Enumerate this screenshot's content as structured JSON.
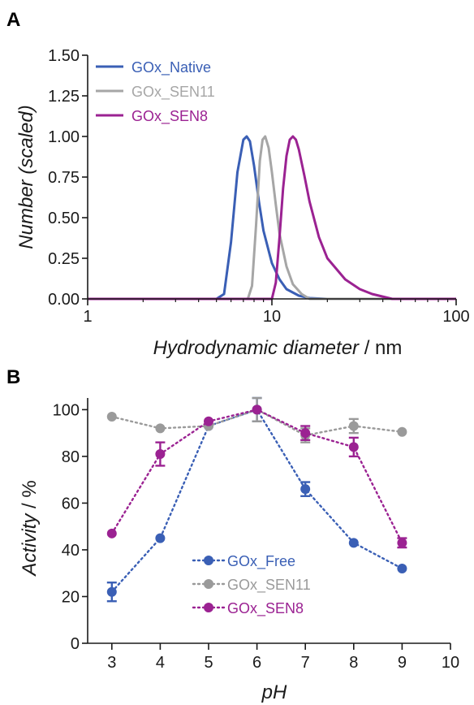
{
  "colors": {
    "native": "#3a5fb5",
    "sen11": "#a6a6a6",
    "sen8": "#9b2292",
    "axis": "#1a1a1a"
  },
  "chart_data": [
    {
      "panel": "A",
      "type": "line",
      "xscale": "log",
      "xlim": [
        1,
        100
      ],
      "ylim": [
        0,
        1.5
      ],
      "xticks": [
        1,
        10,
        100
      ],
      "xtick_labels": [
        "1",
        "10",
        "100"
      ],
      "yticks": [
        0,
        0.25,
        0.5,
        0.75,
        1.0,
        1.25,
        1.5
      ],
      "ytick_labels": [
        "0.00",
        "0.25",
        "0.50",
        "0.75",
        "1.00",
        "1.25",
        "1.50"
      ],
      "ylabel": "Number  (scaled)",
      "xlabel_italic": "Hydrodynamic diameter",
      "xlabel_unit": " / nm",
      "legend": "top-left",
      "series": [
        {
          "name": "GOx_Native",
          "color": "#3a5fb5",
          "x": [
            1,
            5.0,
            5.5,
            6.0,
            6.5,
            7.0,
            7.3,
            7.6,
            8.0,
            8.5,
            9.0,
            10.0,
            11.0,
            12.0,
            14.0,
            16.0,
            20.0,
            100
          ],
          "y": [
            0,
            0,
            0.03,
            0.35,
            0.78,
            0.98,
            1.0,
            0.97,
            0.82,
            0.6,
            0.42,
            0.22,
            0.12,
            0.06,
            0.02,
            0.005,
            0,
            0
          ]
        },
        {
          "name": "GOx_SEN11",
          "color": "#a6a6a6",
          "x": [
            1,
            7.4,
            7.8,
            8.2,
            8.6,
            8.9,
            9.2,
            9.6,
            10.0,
            10.5,
            11.0,
            12.0,
            13.0,
            14.5,
            16.0,
            100
          ],
          "y": [
            0,
            0,
            0.08,
            0.45,
            0.85,
            0.98,
            1.0,
            0.93,
            0.78,
            0.58,
            0.4,
            0.2,
            0.09,
            0.03,
            0,
            0
          ]
        },
        {
          "name": "GOx_SEN8",
          "color": "#9b2292",
          "x": [
            1,
            10.0,
            10.5,
            11.0,
            11.5,
            12.0,
            12.5,
            13.0,
            13.5,
            14.0,
            15.0,
            16.0,
            18.0,
            20.0,
            25.0,
            30.0,
            35.0,
            45.0,
            100
          ],
          "y": [
            0,
            0,
            0.1,
            0.38,
            0.68,
            0.88,
            0.98,
            1.0,
            0.98,
            0.92,
            0.76,
            0.6,
            0.38,
            0.25,
            0.12,
            0.06,
            0.03,
            0,
            0
          ]
        }
      ]
    },
    {
      "panel": "B",
      "type": "scatter",
      "xlim": [
        2.5,
        10
      ],
      "ylim": [
        0,
        105
      ],
      "xticks": [
        3,
        4,
        5,
        6,
        7,
        8,
        9,
        10
      ],
      "xtick_labels": [
        "3",
        "4",
        "5",
        "6",
        "7",
        "8",
        "9",
        "10"
      ],
      "yticks": [
        0,
        20,
        40,
        60,
        80,
        100
      ],
      "ytick_labels": [
        "0",
        "20",
        "40",
        "60",
        "80",
        "100"
      ],
      "xlabel": "pH",
      "ylabel_italic": "Activity",
      "ylabel_unit": " / %",
      "legend": "bottom-center",
      "series": [
        {
          "name": "GOx_Free",
          "color": "#3a5fb5",
          "x": [
            3,
            4,
            5,
            6,
            7,
            8,
            9
          ],
          "y": [
            22,
            45,
            93,
            100,
            66,
            43,
            32
          ],
          "err": [
            4,
            1,
            1,
            5,
            3,
            1,
            1
          ]
        },
        {
          "name": "GOx_SEN11",
          "color": "#9a9a9a",
          "x": [
            3,
            4,
            5,
            6,
            7,
            8,
            9
          ],
          "y": [
            97,
            92,
            93,
            100,
            89,
            93,
            90.5
          ],
          "err": [
            1,
            1,
            1,
            5,
            3,
            3,
            1
          ]
        },
        {
          "name": "GOx_SEN8",
          "color": "#9b2292",
          "x": [
            3,
            4,
            5,
            6,
            7,
            8,
            9
          ],
          "y": [
            47,
            81,
            95,
            100,
            90,
            84,
            43
          ],
          "err": [
            1,
            5,
            1,
            1,
            3,
            4,
            2
          ]
        }
      ]
    }
  ],
  "panel_labels": [
    "A",
    "B"
  ]
}
